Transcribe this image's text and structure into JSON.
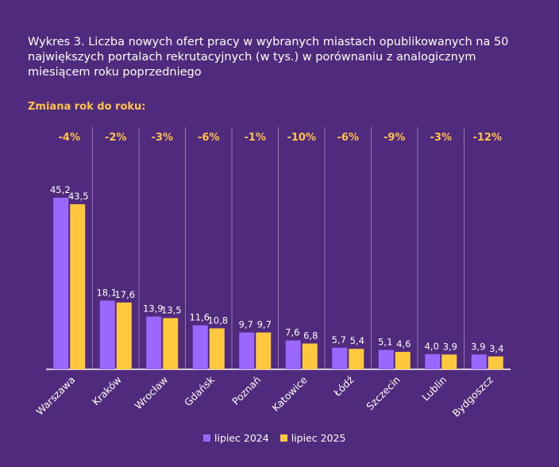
{
  "title": "Wykres 3. Liczba nowych ofert pracy w wybranych miastach opublikowanych na 50 największych portalach rekrutacyjnych (w tys.) w porównaniu z analogicznym miesiącem roku poprzedniego",
  "yoy_label": "Zmiana rok do roku:",
  "colors": {
    "background": "#4f2a7d",
    "series_2024": "#9a68ff",
    "series_2025": "#ffc83d",
    "yoy_text": "#ffc24a",
    "divider": "#8f78b4"
  },
  "chart_data": {
    "type": "bar",
    "categories": [
      "Warszawa",
      "Kraków",
      "Wrocław",
      "Gdańsk",
      "Poznań",
      "Katowice",
      "Łódź",
      "Szczecin",
      "Lublin",
      "Bydgoszcz"
    ],
    "series": [
      {
        "name": "lipiec 2024",
        "values": [
          45.2,
          18.1,
          13.9,
          11.6,
          9.7,
          7.6,
          5.7,
          5.1,
          4.0,
          3.9
        ],
        "labels": [
          "45,2",
          "18,1",
          "13,9",
          "11,6",
          "9,7",
          "7,6",
          "5,7",
          "5,1",
          "4,0",
          "3,9"
        ]
      },
      {
        "name": "lipiec 2025",
        "values": [
          43.5,
          17.6,
          13.5,
          10.8,
          9.7,
          6.8,
          5.4,
          4.6,
          3.9,
          3.4
        ],
        "labels": [
          "43,5",
          "17,6",
          "13,5",
          "10,8",
          "9,7",
          "6,8",
          "5,4",
          "4,6",
          "3,9",
          "3,4"
        ]
      }
    ],
    "yoy_changes": [
      "-4%",
      "-2%",
      "-3%",
      "-6%",
      "-1%",
      "-10%",
      "-6%",
      "-9%",
      "-3%",
      "-12%"
    ],
    "ylim": [
      0,
      45.2
    ],
    "grid": false,
    "legend_position": "bottom-center"
  }
}
